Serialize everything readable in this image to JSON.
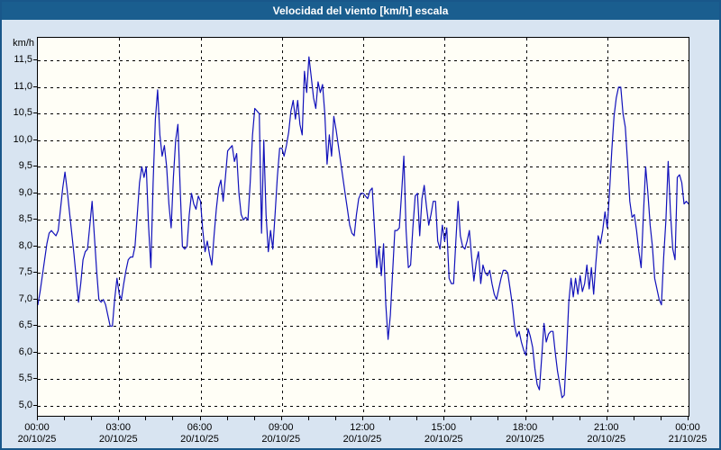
{
  "window": {
    "title": "Velocidad del viento [km/h] escala"
  },
  "chart_data": {
    "type": "line",
    "title": "Velocidad del viento [km/h] escala",
    "xlabel": "",
    "ylabel": "km/h",
    "grid": "dashed",
    "legend": "none",
    "line_color": "#1111bb",
    "plot_bg": "#fffef6",
    "outer_bg": "#d8e4f1",
    "titlebar_bg": "#1a5e8f",
    "ylim": [
      4.81,
      11.93
    ],
    "xlim_hours": [
      0,
      24
    ],
    "yticks": [
      {
        "label": "11,5",
        "value": 11.5
      },
      {
        "label": "11,0",
        "value": 11.0
      },
      {
        "label": "10,5",
        "value": 10.5
      },
      {
        "label": "10,0",
        "value": 10.0
      },
      {
        "label": "9,5",
        "value": 9.5
      },
      {
        "label": "9,0",
        "value": 9.0
      },
      {
        "label": "8,5",
        "value": 8.5
      },
      {
        "label": "8,0",
        "value": 8.0
      },
      {
        "label": "7,5",
        "value": 7.5
      },
      {
        "label": "7,0",
        "value": 7.0
      },
      {
        "label": "6,5",
        "value": 6.5
      },
      {
        "label": "6,0",
        "value": 6.0
      },
      {
        "label": "5,5",
        "value": 5.5
      },
      {
        "label": "5,0",
        "value": 5.0
      }
    ],
    "x_gridline_hours": [
      3,
      6,
      9,
      12,
      15,
      18,
      21
    ],
    "x_minor_tick_hours_step": 1,
    "xticks": [
      {
        "hour": 0,
        "time": "00:00",
        "date": "20/10/25"
      },
      {
        "hour": 3,
        "time": "03:00",
        "date": "20/10/25"
      },
      {
        "hour": 6,
        "time": "06:00",
        "date": "20/10/25"
      },
      {
        "hour": 9,
        "time": "09:00",
        "date": "20/10/25"
      },
      {
        "hour": 12,
        "time": "12:00",
        "date": "20/10/25"
      },
      {
        "hour": 15,
        "time": "15:00",
        "date": "20/10/25"
      },
      {
        "hour": 18,
        "time": "18:00",
        "date": "20/10/25"
      },
      {
        "hour": 21,
        "time": "21:00",
        "date": "20/10/25"
      },
      {
        "hour": 24,
        "time": "00:00",
        "date": "21/10/25"
      }
    ],
    "points": [
      [
        0.0,
        6.9
      ],
      [
        0.083,
        7.15
      ],
      [
        0.167,
        7.45
      ],
      [
        0.25,
        7.75
      ],
      [
        0.333,
        8.05
      ],
      [
        0.417,
        8.25
      ],
      [
        0.5,
        8.3
      ],
      [
        0.583,
        8.25
      ],
      [
        0.667,
        8.2
      ],
      [
        0.75,
        8.3
      ],
      [
        0.833,
        8.7
      ],
      [
        0.917,
        9.1
      ],
      [
        1.0,
        9.4
      ],
      [
        1.083,
        9.05
      ],
      [
        1.167,
        8.65
      ],
      [
        1.25,
        8.25
      ],
      [
        1.333,
        7.85
      ],
      [
        1.417,
        7.4
      ],
      [
        1.5,
        6.95
      ],
      [
        1.583,
        7.3
      ],
      [
        1.667,
        7.75
      ],
      [
        1.75,
        7.9
      ],
      [
        1.833,
        7.95
      ],
      [
        1.917,
        8.4
      ],
      [
        2.0,
        8.85
      ],
      [
        2.083,
        8.2
      ],
      [
        2.167,
        7.55
      ],
      [
        2.25,
        7.0
      ],
      [
        2.333,
        6.95
      ],
      [
        2.417,
        7.0
      ],
      [
        2.5,
        6.9
      ],
      [
        2.583,
        6.7
      ],
      [
        2.667,
        6.5
      ],
      [
        2.75,
        6.5
      ],
      [
        2.833,
        7.0
      ],
      [
        2.917,
        7.4
      ],
      [
        3.0,
        7.1
      ],
      [
        3.083,
        7.0
      ],
      [
        3.167,
        7.3
      ],
      [
        3.25,
        7.55
      ],
      [
        3.333,
        7.75
      ],
      [
        3.417,
        7.8
      ],
      [
        3.5,
        7.8
      ],
      [
        3.583,
        8.0
      ],
      [
        3.667,
        8.6
      ],
      [
        3.75,
        9.2
      ],
      [
        3.833,
        9.5
      ],
      [
        3.917,
        9.3
      ],
      [
        4.0,
        9.5
      ],
      [
        4.083,
        8.4
      ],
      [
        4.167,
        7.6
      ],
      [
        4.25,
        9.2
      ],
      [
        4.333,
        10.4
      ],
      [
        4.417,
        10.95
      ],
      [
        4.5,
        10.1
      ],
      [
        4.583,
        9.7
      ],
      [
        4.667,
        9.9
      ],
      [
        4.75,
        9.5
      ],
      [
        4.833,
        8.8
      ],
      [
        4.917,
        8.35
      ],
      [
        5.0,
        9.3
      ],
      [
        5.083,
        10.0
      ],
      [
        5.167,
        10.3
      ],
      [
        5.25,
        9.1
      ],
      [
        5.333,
        8.0
      ],
      [
        5.417,
        7.95
      ],
      [
        5.5,
        8.0
      ],
      [
        5.583,
        8.6
      ],
      [
        5.667,
        9.0
      ],
      [
        5.75,
        8.8
      ],
      [
        5.833,
        8.7
      ],
      [
        5.917,
        8.95
      ],
      [
        6.0,
        8.85
      ],
      [
        6.083,
        8.3
      ],
      [
        6.167,
        7.9
      ],
      [
        6.25,
        8.1
      ],
      [
        6.333,
        7.85
      ],
      [
        6.417,
        7.65
      ],
      [
        6.5,
        8.2
      ],
      [
        6.583,
        8.7
      ],
      [
        6.667,
        9.1
      ],
      [
        6.75,
        9.25
      ],
      [
        6.833,
        8.85
      ],
      [
        6.917,
        9.3
      ],
      [
        7.0,
        9.8
      ],
      [
        7.083,
        9.85
      ],
      [
        7.167,
        9.9
      ],
      [
        7.25,
        9.6
      ],
      [
        7.333,
        9.75
      ],
      [
        7.417,
        9.0
      ],
      [
        7.5,
        8.6
      ],
      [
        7.583,
        8.5
      ],
      [
        7.667,
        8.55
      ],
      [
        7.75,
        8.5
      ],
      [
        7.833,
        9.2
      ],
      [
        7.917,
        10.1
      ],
      [
        8.0,
        10.6
      ],
      [
        8.083,
        10.55
      ],
      [
        8.167,
        10.5
      ],
      [
        8.25,
        8.25
      ],
      [
        8.333,
        10.0
      ],
      [
        8.417,
        8.6
      ],
      [
        8.5,
        7.9
      ],
      [
        8.583,
        8.3
      ],
      [
        8.667,
        7.95
      ],
      [
        8.75,
        8.6
      ],
      [
        8.833,
        9.3
      ],
      [
        8.917,
        9.85
      ],
      [
        9.0,
        9.85
      ],
      [
        9.083,
        9.7
      ],
      [
        9.167,
        9.9
      ],
      [
        9.25,
        10.15
      ],
      [
        9.333,
        10.55
      ],
      [
        9.417,
        10.75
      ],
      [
        9.5,
        10.4
      ],
      [
        9.583,
        10.75
      ],
      [
        9.667,
        10.3
      ],
      [
        9.75,
        10.1
      ],
      [
        9.833,
        11.3
      ],
      [
        9.917,
        10.9
      ],
      [
        10.0,
        11.57
      ],
      [
        10.083,
        11.2
      ],
      [
        10.167,
        10.8
      ],
      [
        10.25,
        10.6
      ],
      [
        10.333,
        11.1
      ],
      [
        10.417,
        10.9
      ],
      [
        10.5,
        11.05
      ],
      [
        10.583,
        10.5
      ],
      [
        10.667,
        9.55
      ],
      [
        10.75,
        10.1
      ],
      [
        10.833,
        9.7
      ],
      [
        10.917,
        10.45
      ],
      [
        11.0,
        10.2
      ],
      [
        11.083,
        9.9
      ],
      [
        11.167,
        9.6
      ],
      [
        11.25,
        9.3
      ],
      [
        11.333,
        9.0
      ],
      [
        11.417,
        8.7
      ],
      [
        11.5,
        8.4
      ],
      [
        11.583,
        8.25
      ],
      [
        11.667,
        8.2
      ],
      [
        11.75,
        8.6
      ],
      [
        11.833,
        8.9
      ],
      [
        11.917,
        9.0
      ],
      [
        12.0,
        9.0
      ],
      [
        12.083,
        8.95
      ],
      [
        12.167,
        8.9
      ],
      [
        12.25,
        9.05
      ],
      [
        12.333,
        9.1
      ],
      [
        12.417,
        8.35
      ],
      [
        12.5,
        7.6
      ],
      [
        12.583,
        8.0
      ],
      [
        12.667,
        7.45
      ],
      [
        12.75,
        8.05
      ],
      [
        12.833,
        6.9
      ],
      [
        12.917,
        6.25
      ],
      [
        13.0,
        6.7
      ],
      [
        13.083,
        7.5
      ],
      [
        13.167,
        8.3
      ],
      [
        13.25,
        8.3
      ],
      [
        13.333,
        8.35
      ],
      [
        13.417,
        9.0
      ],
      [
        13.5,
        9.7
      ],
      [
        13.583,
        8.3
      ],
      [
        13.667,
        7.6
      ],
      [
        13.75,
        7.65
      ],
      [
        13.833,
        8.35
      ],
      [
        13.917,
        8.95
      ],
      [
        14.0,
        9.0
      ],
      [
        14.083,
        8.2
      ],
      [
        14.167,
        8.9
      ],
      [
        14.25,
        9.15
      ],
      [
        14.333,
        8.75
      ],
      [
        14.417,
        8.4
      ],
      [
        14.5,
        8.6
      ],
      [
        14.583,
        8.85
      ],
      [
        14.667,
        8.85
      ],
      [
        14.75,
        8.1
      ],
      [
        14.833,
        7.95
      ],
      [
        14.917,
        8.4
      ],
      [
        15.0,
        8.1
      ],
      [
        15.083,
        8.35
      ],
      [
        15.167,
        7.4
      ],
      [
        15.25,
        7.3
      ],
      [
        15.333,
        7.3
      ],
      [
        15.417,
        8.1
      ],
      [
        15.5,
        8.85
      ],
      [
        15.583,
        8.2
      ],
      [
        15.667,
        8.0
      ],
      [
        15.75,
        7.95
      ],
      [
        15.833,
        8.1
      ],
      [
        15.917,
        8.3
      ],
      [
        16.0,
        7.8
      ],
      [
        16.083,
        7.35
      ],
      [
        16.167,
        7.7
      ],
      [
        16.25,
        7.9
      ],
      [
        16.333,
        7.3
      ],
      [
        16.417,
        7.65
      ],
      [
        16.5,
        7.5
      ],
      [
        16.583,
        7.45
      ],
      [
        16.667,
        7.55
      ],
      [
        16.75,
        7.3
      ],
      [
        16.833,
        7.1
      ],
      [
        16.917,
        7.0
      ],
      [
        17.0,
        7.2
      ],
      [
        17.083,
        7.4
      ],
      [
        17.167,
        7.55
      ],
      [
        17.25,
        7.55
      ],
      [
        17.333,
        7.5
      ],
      [
        17.417,
        7.2
      ],
      [
        17.5,
        6.9
      ],
      [
        17.583,
        6.5
      ],
      [
        17.667,
        6.3
      ],
      [
        17.75,
        6.4
      ],
      [
        17.833,
        6.2
      ],
      [
        17.917,
        6.05
      ],
      [
        18.0,
        5.95
      ],
      [
        18.083,
        6.45
      ],
      [
        18.167,
        6.3
      ],
      [
        18.25,
        6.1
      ],
      [
        18.333,
        5.7
      ],
      [
        18.417,
        5.4
      ],
      [
        18.5,
        5.3
      ],
      [
        18.583,
        5.9
      ],
      [
        18.667,
        6.55
      ],
      [
        18.75,
        6.2
      ],
      [
        18.833,
        6.35
      ],
      [
        18.917,
        6.4
      ],
      [
        19.0,
        6.4
      ],
      [
        19.083,
        6.0
      ],
      [
        19.167,
        5.65
      ],
      [
        19.25,
        5.4
      ],
      [
        19.333,
        5.15
      ],
      [
        19.417,
        5.2
      ],
      [
        19.5,
        6.0
      ],
      [
        19.583,
        6.95
      ],
      [
        19.667,
        7.4
      ],
      [
        19.75,
        7.05
      ],
      [
        19.833,
        7.4
      ],
      [
        19.917,
        7.1
      ],
      [
        20.0,
        7.45
      ],
      [
        20.083,
        7.15
      ],
      [
        20.167,
        7.3
      ],
      [
        20.25,
        7.65
      ],
      [
        20.333,
        7.2
      ],
      [
        20.417,
        7.6
      ],
      [
        20.5,
        7.1
      ],
      [
        20.583,
        7.7
      ],
      [
        20.667,
        8.2
      ],
      [
        20.75,
        8.05
      ],
      [
        20.833,
        8.3
      ],
      [
        20.917,
        8.65
      ],
      [
        21.0,
        8.35
      ],
      [
        21.083,
        9.0
      ],
      [
        21.167,
        9.8
      ],
      [
        21.25,
        10.45
      ],
      [
        21.333,
        10.8
      ],
      [
        21.417,
        11.0
      ],
      [
        21.5,
        11.0
      ],
      [
        21.583,
        10.5
      ],
      [
        21.667,
        10.25
      ],
      [
        21.75,
        9.6
      ],
      [
        21.833,
        8.85
      ],
      [
        21.917,
        8.55
      ],
      [
        22.0,
        8.6
      ],
      [
        22.083,
        8.3
      ],
      [
        22.167,
        7.9
      ],
      [
        22.25,
        7.6
      ],
      [
        22.333,
        8.6
      ],
      [
        22.417,
        9.5
      ],
      [
        22.5,
        9.0
      ],
      [
        22.583,
        8.4
      ],
      [
        22.667,
        8.0
      ],
      [
        22.75,
        7.4
      ],
      [
        22.833,
        7.2
      ],
      [
        22.917,
        7.0
      ],
      [
        23.0,
        6.9
      ],
      [
        23.083,
        7.8
      ],
      [
        23.167,
        8.5
      ],
      [
        23.25,
        9.6
      ],
      [
        23.333,
        8.65
      ],
      [
        23.417,
        7.95
      ],
      [
        23.5,
        7.75
      ],
      [
        23.583,
        9.3
      ],
      [
        23.667,
        9.35
      ],
      [
        23.75,
        9.2
      ],
      [
        23.833,
        8.8
      ],
      [
        23.917,
        8.85
      ],
      [
        24.0,
        8.8
      ]
    ]
  }
}
